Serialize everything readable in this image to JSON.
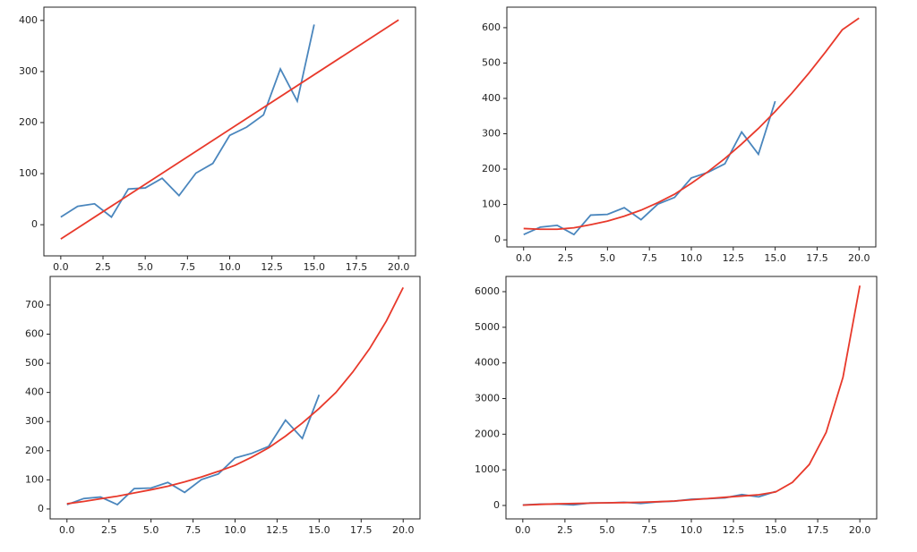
{
  "chart_data": [
    {
      "type": "line",
      "xlim": [
        -1,
        21
      ],
      "ylim": [
        -61,
        426
      ],
      "xticks": [
        {
          "value": 0,
          "label": "0.0"
        },
        2.5,
        {
          "value": 5,
          "label": "5.0"
        },
        7.5,
        {
          "value": 10,
          "label": "10.0"
        },
        12.5,
        {
          "value": 15,
          "label": "15.0"
        },
        17.5,
        {
          "value": 20,
          "label": "20.0"
        }
      ],
      "yticks": [
        0,
        100,
        200,
        300,
        400
      ],
      "series": [
        {
          "color": "#4a86bd",
          "x": [
            0,
            1,
            2,
            3,
            4,
            5,
            6,
            7,
            8,
            9,
            10,
            11,
            12,
            13,
            14,
            15
          ],
          "values": [
            15,
            36,
            41,
            15,
            70,
            72,
            91,
            57,
            101,
            120,
            175,
            191,
            215,
            305,
            242,
            392
          ]
        },
        {
          "color": "#e8392b",
          "x": [
            0,
            20
          ],
          "values": [
            -28,
            401
          ]
        }
      ]
    },
    {
      "type": "line",
      "xlim": [
        -1,
        21
      ],
      "ylim": [
        -20,
        658
      ],
      "xticks": [
        {
          "value": 0,
          "label": "0.0"
        },
        2.5,
        {
          "value": 5,
          "label": "5.0"
        },
        7.5,
        {
          "value": 10,
          "label": "10.0"
        },
        12.5,
        {
          "value": 15,
          "label": "15.0"
        },
        17.5,
        {
          "value": 20,
          "label": "20.0"
        }
      ],
      "yticks": [
        0,
        100,
        200,
        300,
        400,
        500,
        600
      ],
      "series": [
        {
          "color": "#4a86bd",
          "x": [
            0,
            1,
            2,
            3,
            4,
            5,
            6,
            7,
            8,
            9,
            10,
            11,
            12,
            13,
            14,
            15
          ],
          "values": [
            15,
            36,
            41,
            15,
            70,
            72,
            91,
            57,
            101,
            120,
            175,
            191,
            215,
            305,
            242,
            392
          ]
        },
        {
          "color": "#e8392b",
          "x": [
            0,
            1,
            2,
            3,
            4,
            5,
            6,
            7,
            8,
            9,
            10,
            11,
            12,
            13,
            14,
            15,
            16,
            17,
            18,
            19,
            20
          ],
          "values": [
            32,
            30,
            30,
            34,
            43,
            53,
            67,
            84,
            105,
            129,
            160,
            193,
            230,
            271,
            315,
            363,
            415,
            471,
            531,
            594,
            627
          ]
        }
      ]
    },
    {
      "type": "line",
      "xlim": [
        -1,
        21
      ],
      "ylim": [
        -34,
        798
      ],
      "xticks": [
        {
          "value": 0,
          "label": "0.0"
        },
        2.5,
        {
          "value": 5,
          "label": "5.0"
        },
        7.5,
        {
          "value": 10,
          "label": "10.0"
        },
        12.5,
        {
          "value": 15,
          "label": "15.0"
        },
        17.5,
        {
          "value": 20,
          "label": "20.0"
        }
      ],
      "yticks": [
        0,
        100,
        200,
        300,
        400,
        500,
        600,
        700
      ],
      "series": [
        {
          "color": "#4a86bd",
          "x": [
            0,
            1,
            2,
            3,
            4,
            5,
            6,
            7,
            8,
            9,
            10,
            11,
            12,
            13,
            14,
            15
          ],
          "values": [
            15,
            36,
            41,
            15,
            70,
            72,
            91,
            57,
            101,
            120,
            175,
            191,
            215,
            305,
            242,
            392
          ]
        },
        {
          "color": "#e8392b",
          "x": [
            0,
            1,
            2,
            3,
            4,
            5,
            6,
            7,
            8,
            9,
            10,
            11,
            12,
            13,
            14,
            15,
            16,
            17,
            18,
            19,
            20
          ],
          "values": [
            18,
            26,
            35,
            44,
            55,
            66,
            78,
            93,
            110,
            129,
            150,
            178,
            210,
            250,
            295,
            345,
            400,
            470,
            550,
            645,
            760
          ]
        }
      ]
    },
    {
      "type": "line",
      "xlim": [
        -1,
        21
      ],
      "ylim": [
        -377,
        6427
      ],
      "xticks": [
        {
          "value": 0,
          "label": "0.0"
        },
        2.5,
        {
          "value": 5,
          "label": "5.0"
        },
        7.5,
        {
          "value": 10,
          "label": "10.0"
        },
        12.5,
        {
          "value": 15,
          "label": "15.0"
        },
        17.5,
        {
          "value": 20,
          "label": "20.0"
        }
      ],
      "yticks": [
        0,
        1000,
        2000,
        3000,
        4000,
        5000,
        6000
      ],
      "series": [
        {
          "color": "#4a86bd",
          "x": [
            0,
            1,
            2,
            3,
            4,
            5,
            6,
            7,
            8,
            9,
            10,
            11,
            12,
            13,
            14,
            15
          ],
          "values": [
            15,
            36,
            41,
            15,
            70,
            72,
            91,
            57,
            101,
            120,
            175,
            191,
            215,
            305,
            242,
            392
          ]
        },
        {
          "color": "#e8392b",
          "x": [
            0,
            1,
            2,
            3,
            4,
            5,
            6,
            7,
            8,
            9,
            10,
            11,
            12,
            13,
            14,
            15,
            16,
            17,
            18,
            19,
            20
          ],
          "values": [
            10,
            30,
            45,
            55,
            65,
            75,
            80,
            90,
            105,
            125,
            160,
            195,
            230,
            265,
            300,
            380,
            650,
            1150,
            2050,
            3600,
            6170
          ]
        }
      ]
    }
  ]
}
